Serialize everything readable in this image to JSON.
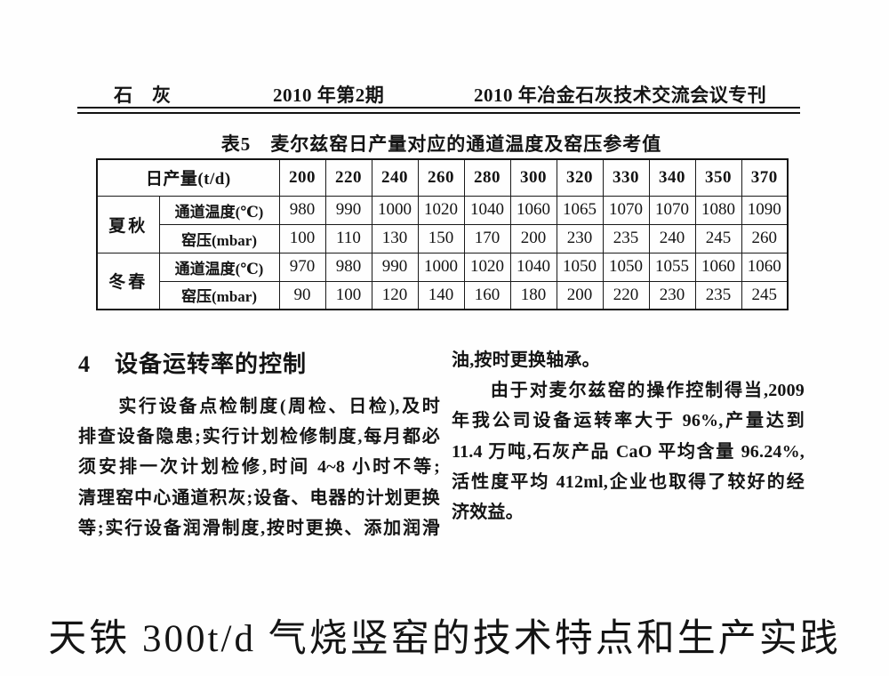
{
  "header": {
    "journal": "石　灰",
    "issue": "2010 年第2期",
    "special": "2010 年冶金石灰技术交流会议专刊"
  },
  "table": {
    "caption": "表5　麦尔兹窑日产量对应的通道温度及窑压参考值",
    "header_label": "日产量(t/d)",
    "columns": [
      "200",
      "220",
      "240",
      "260",
      "280",
      "300",
      "320",
      "330",
      "340",
      "350",
      "370"
    ],
    "groups": [
      {
        "season": "夏秋",
        "rows": [
          {
            "label": "通道温度(℃)",
            "values": [
              "980",
              "990",
              "1000",
              "1020",
              "1040",
              "1060",
              "1065",
              "1070",
              "1070",
              "1080",
              "1090"
            ]
          },
          {
            "label": "窑压(mbar)",
            "values": [
              "100",
              "110",
              "130",
              "150",
              "170",
              "200",
              "230",
              "235",
              "240",
              "245",
              "260"
            ]
          }
        ]
      },
      {
        "season": "冬春",
        "rows": [
          {
            "label": "通道温度(℃)",
            "values": [
              "970",
              "980",
              "990",
              "1000",
              "1020",
              "1040",
              "1050",
              "1050",
              "1055",
              "1060",
              "1060"
            ]
          },
          {
            "label": "窑压(mbar)",
            "values": [
              "90",
              "100",
              "120",
              "140",
              "160",
              "180",
              "200",
              "220",
              "230",
              "235",
              "245"
            ]
          }
        ]
      }
    ]
  },
  "section": {
    "heading": "4　设备运转率的控制",
    "left_lines": [
      {
        "text": "　　实行设备点检制度(周检、日检),及时",
        "fill": true
      },
      {
        "text": "排查设备隐患;实行计划检修制度,每月都必",
        "fill": true
      },
      {
        "text": "须安排一次计划检修,时间 4~8 小时不等;",
        "fill": true
      },
      {
        "text": "清理窑中心通道积灰;设备、电器的计划更换",
        "fill": true
      },
      {
        "text": "等;实行设备润滑制度,按时更换、添加润滑",
        "fill": true
      }
    ],
    "right_lines": [
      {
        "text": "油,按时更换轴承。",
        "fill": false
      },
      {
        "text": "　　由于对麦尔兹窑的操作控制得当,2009",
        "fill": true
      },
      {
        "text": "年我公司设备运转率大于 96%,产量达到",
        "fill": true
      },
      {
        "text": "11.4 万吨,石灰产品 CaO 平均含量 96.24%,",
        "fill": true
      },
      {
        "text": "活性度平均 412ml,企业也取得了较好的经",
        "fill": true
      },
      {
        "text": "济效益。",
        "fill": false
      }
    ]
  },
  "footer_title": "天铁 300t/d 气烧竖窑的技术特点和生产实践"
}
